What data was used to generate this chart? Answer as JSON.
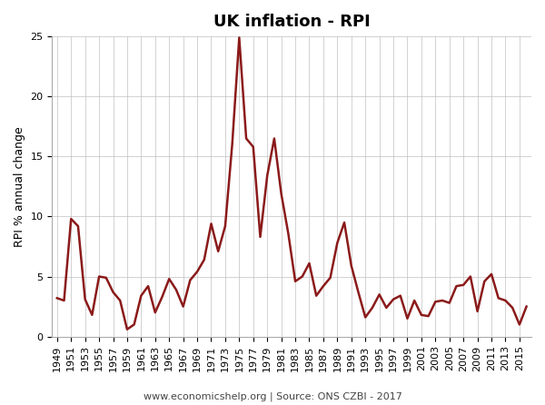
{
  "title": "UK inflation - RPI",
  "ylabel": "RPI % annual change",
  "source_text": "www.economicshelp.org | Source: ONS CZBI - 2017",
  "line_color": "#8B1A1A",
  "background_color": "#ffffff",
  "years": [
    1949,
    1950,
    1951,
    1952,
    1953,
    1954,
    1955,
    1956,
    1957,
    1958,
    1959,
    1960,
    1961,
    1962,
    1963,
    1964,
    1965,
    1966,
    1967,
    1968,
    1969,
    1970,
    1971,
    1972,
    1973,
    1974,
    1975,
    1976,
    1977,
    1978,
    1979,
    1980,
    1981,
    1982,
    1983,
    1984,
    1985,
    1986,
    1987,
    1988,
    1989,
    1990,
    1991,
    1992,
    1993,
    1994,
    1995,
    1996,
    1997,
    1998,
    1999,
    2000,
    2001,
    2002,
    2003,
    2004,
    2005,
    2006,
    2007,
    2008,
    2009,
    2010,
    2011,
    2012,
    2013,
    2014,
    2015,
    2016
  ],
  "values": [
    3.2,
    3.0,
    9.8,
    9.2,
    3.1,
    1.8,
    5.0,
    4.9,
    3.7,
    3.0,
    0.6,
    1.0,
    3.4,
    4.2,
    2.0,
    3.3,
    4.8,
    3.9,
    2.5,
    4.7,
    5.4,
    6.4,
    9.4,
    7.1,
    9.2,
    16.0,
    24.9,
    16.5,
    15.8,
    8.3,
    13.4,
    16.5,
    11.9,
    8.6,
    4.6,
    5.0,
    6.1,
    3.4,
    4.2,
    4.9,
    7.8,
    9.5,
    5.9,
    3.7,
    1.6,
    2.4,
    3.5,
    2.4,
    3.1,
    3.4,
    1.5,
    3.0,
    1.8,
    1.7,
    2.9,
    3.0,
    2.8,
    4.2,
    4.3,
    5.0,
    2.1,
    4.6,
    5.2,
    3.2,
    3.0,
    2.4,
    1.0,
    2.5
  ],
  "ylim": [
    0,
    25
  ],
  "yticks": [
    0,
    5,
    10,
    15,
    20,
    25
  ],
  "x_tick_step": 2,
  "x_start_tick": 1949,
  "figwidth": 6.0,
  "figheight": 4.46,
  "dpi": 100,
  "title_fontsize": 13,
  "ylabel_fontsize": 9,
  "tick_fontsize": 8,
  "linewidth": 1.8,
  "grid_color": "#c0c0c0",
  "source_fontsize": 8,
  "source_color": "#444444"
}
